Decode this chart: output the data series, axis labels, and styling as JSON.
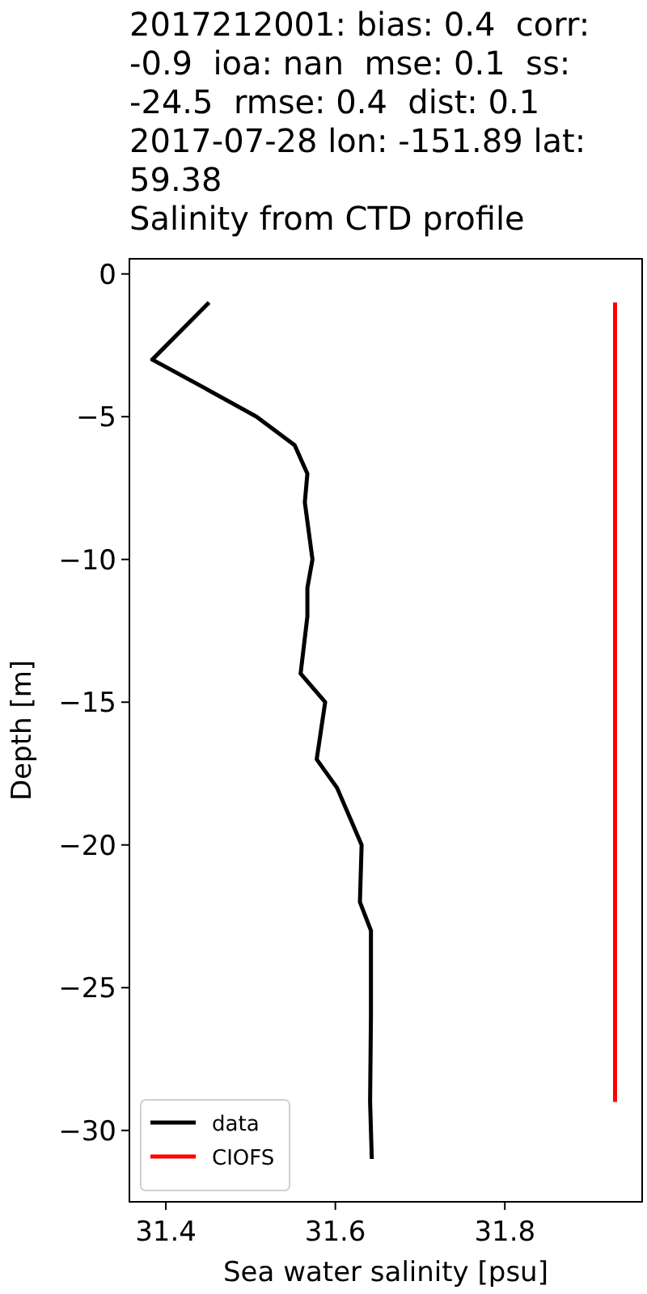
{
  "chart_data": {
    "type": "line",
    "title": "2017212001: bias: 0.4  corr: -0.9  ioa: nan  mse: 0.1  ss: -24.5  rmse: 0.4  dist: 0.1\n2017-07-28 lon: -151.89 lat: 59.38\nSalinity from CTD profile",
    "xlabel": "Sea water salinity [psu]",
    "ylabel": "Depth [m]",
    "series": [
      {
        "name": "data",
        "color": "#000000",
        "x": [
          31.451,
          31.384,
          31.446,
          31.507,
          31.552,
          31.567,
          31.564,
          31.573,
          31.567,
          31.567,
          31.559,
          31.588,
          31.583,
          31.578,
          31.602,
          31.631,
          31.629,
          31.642,
          31.642,
          31.641,
          31.643
        ],
        "values": [
          -1,
          -3,
          -4,
          -5,
          -6,
          -7,
          -8,
          -10,
          -11,
          -12,
          -14,
          -15,
          -16,
          -17,
          -18,
          -20,
          -22,
          -23,
          -26,
          -29,
          -31
        ]
      },
      {
        "name": "CIOFS",
        "color": "#ff0000",
        "x": [
          31.93,
          31.93
        ],
        "values": [
          -1,
          -29
        ]
      }
    ],
    "xlim": [
      31.357,
      31.962
    ],
    "xticks": [
      31.4,
      31.6,
      31.8
    ],
    "ylim": [
      -32.5,
      0.53
    ],
    "yticks": [
      0,
      -5,
      -10,
      -15,
      -20,
      -25,
      -30
    ],
    "grid": false,
    "legend": "bottom left"
  }
}
